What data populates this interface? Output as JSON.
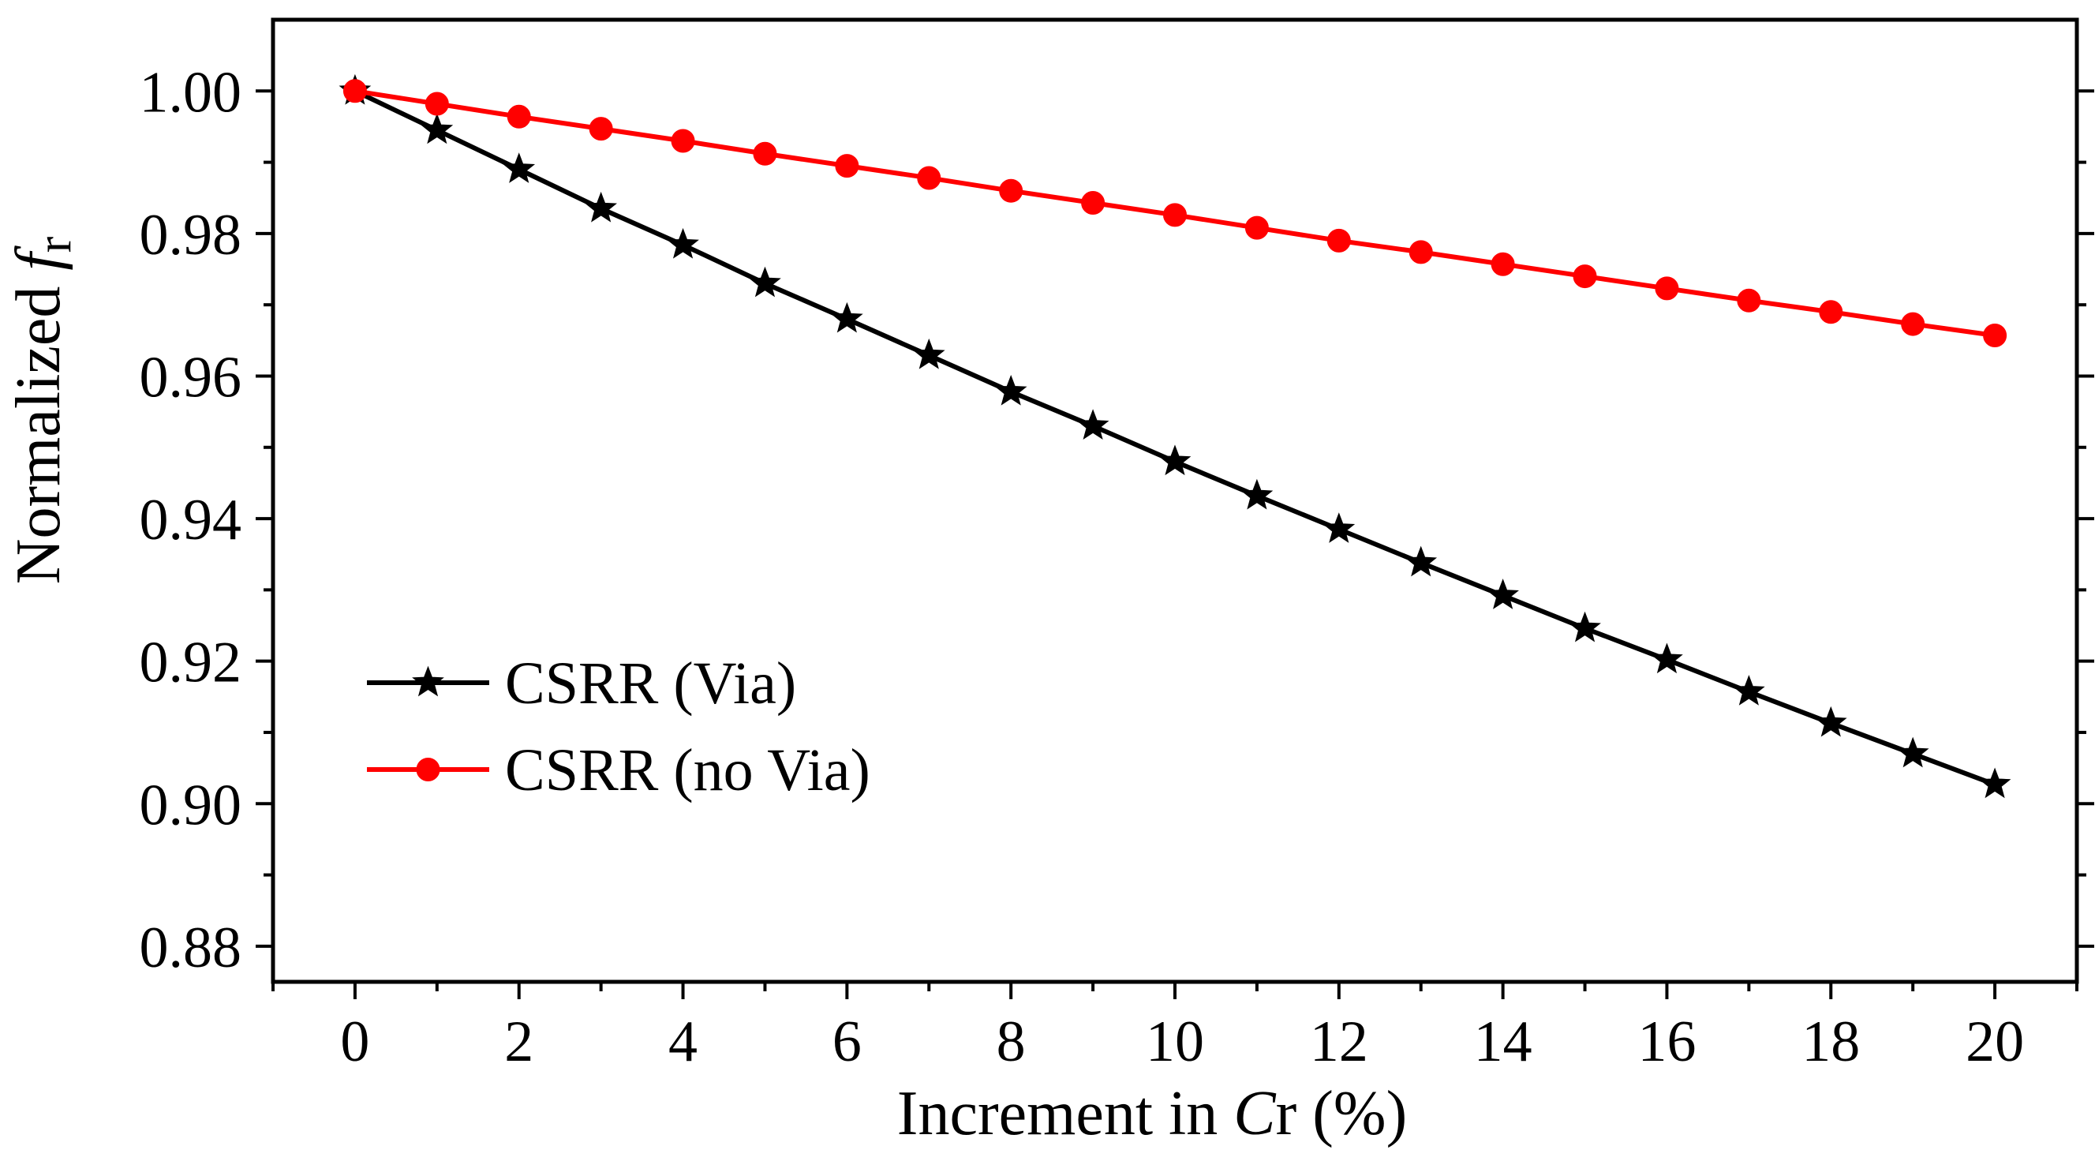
{
  "chart_data": {
    "type": "line",
    "title": "",
    "xlabel": {
      "prefix": "Increment in ",
      "italic": "C",
      "suffix": "r (%)"
    },
    "ylabel": {
      "prefix": "Normalized ",
      "italic": "f",
      "subscript": "r"
    },
    "xlim": [
      -1,
      21
    ],
    "ylim": [
      0.875,
      1.01
    ],
    "x_ticks": [
      0,
      2,
      4,
      6,
      8,
      10,
      12,
      14,
      16,
      18,
      20
    ],
    "x_tick_labels": [
      "0",
      "2",
      "4",
      "6",
      "8",
      "10",
      "12",
      "14",
      "16",
      "18",
      "20"
    ],
    "x_minor_ticks": [
      -1,
      1,
      3,
      5,
      7,
      9,
      11,
      13,
      15,
      17,
      19,
      21
    ],
    "y_ticks": [
      0.88,
      0.9,
      0.92,
      0.94,
      0.96,
      0.98,
      1.0
    ],
    "y_tick_labels": [
      "0.88",
      "0.90",
      "0.92",
      "0.94",
      "0.96",
      "0.98",
      "1.00"
    ],
    "y_minor_ticks": [
      0.89,
      0.91,
      0.93,
      0.95,
      0.97,
      0.99
    ],
    "grid": false,
    "legend_position": "lower-left",
    "x": [
      0,
      1,
      2,
      3,
      4,
      5,
      6,
      7,
      8,
      9,
      10,
      11,
      12,
      13,
      14,
      15,
      16,
      17,
      18,
      19,
      20
    ],
    "series": [
      {
        "name": "CSRR (Via)",
        "marker": "star",
        "color": "#000000",
        "values": [
          1.0,
          0.9945,
          0.989,
          0.9835,
          0.9784,
          0.973,
          0.968,
          0.9629,
          0.9578,
          0.953,
          0.948,
          0.9432,
          0.9385,
          0.9338,
          0.9292,
          0.9246,
          0.9202,
          0.9157,
          0.9113,
          0.907,
          0.9027
        ]
      },
      {
        "name": "CSRR (no Via)",
        "marker": "circle",
        "color": "#ff0000",
        "values": [
          1.0,
          0.9982,
          0.9964,
          0.9947,
          0.993,
          0.9912,
          0.9895,
          0.9878,
          0.986,
          0.9843,
          0.9826,
          0.9808,
          0.979,
          0.9774,
          0.9757,
          0.974,
          0.9723,
          0.9706,
          0.969,
          0.9673,
          0.9657
        ]
      }
    ]
  }
}
